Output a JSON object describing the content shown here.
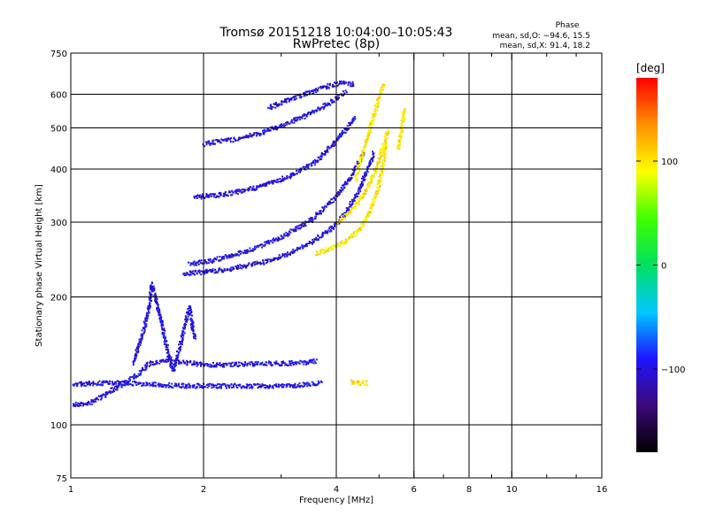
{
  "chart_data": {
    "type": "scatter",
    "title": "Tromsø 20151218 10:04:00–10:05:43",
    "subtitle": "RwPretec (8p)",
    "xlabel": "Frequency [MHz]",
    "ylabel": "Stationary phase Virtual Height [km]",
    "x_scale": "log",
    "y_scale": "log",
    "xlim": [
      1,
      16
    ],
    "ylim": [
      75,
      750
    ],
    "x_ticks": [
      "1",
      "2",
      "4",
      "6",
      "8",
      "10",
      "16"
    ],
    "x_tick_values": [
      1,
      2,
      4,
      6,
      8,
      10,
      16
    ],
    "x_minor_ticks": [
      3,
      5,
      7,
      9,
      12,
      14
    ],
    "y_ticks": [
      "75",
      "100",
      "200",
      "300",
      "400",
      "500",
      "600",
      "750"
    ],
    "y_tick_values": [
      75,
      100,
      200,
      300,
      400,
      500,
      600,
      750
    ],
    "grid": true,
    "grid_x": [
      2,
      4,
      6,
      8,
      10
    ],
    "grid_y": [
      100,
      200,
      300,
      400,
      500,
      600
    ],
    "stats": {
      "heading": "Phase",
      "line_o": "mean, sd,O: −94.6, 15.5",
      "line_x": "mean, sd,X:  91.4, 18.2"
    },
    "colorbar": {
      "label": "[deg]",
      "range": [
        -180,
        180
      ],
      "ticks": [
        "100",
        "0",
        "−100"
      ],
      "tick_values": [
        100,
        0,
        -100
      ],
      "colors": [
        "#000000",
        "#3c0a78",
        "#1e14ff",
        "#00c8ff",
        "#00e060",
        "#40ff00",
        "#ffff00",
        "#ff9000",
        "#ff0000"
      ]
    },
    "traces": [
      {
        "name": "",
        "phase": -100,
        "x": [
          1.0,
          1.1,
          1.2,
          1.3,
          1.42,
          1.5,
          1.62,
          1.75,
          1.9,
          2.0,
          2.3,
          2.7,
          3.0,
          3.4,
          3.6
        ],
        "y": [
          112,
          113,
          119,
          125,
          132,
          140,
          142,
          141,
          140,
          139,
          139,
          140,
          140,
          141,
          142
        ]
      },
      {
        "name": "",
        "phase": -100,
        "x": [
          1.0,
          1.15,
          1.35,
          1.55,
          1.8,
          2.0,
          2.5,
          3.0,
          3.4,
          3.7
        ],
        "y": [
          125,
          126,
          126,
          125,
          124,
          124,
          124,
          124,
          125,
          126
        ]
      },
      {
        "name": "",
        "phase": -100,
        "x": [
          1.38,
          1.45,
          1.5,
          1.52,
          1.55,
          1.6,
          1.65,
          1.7
        ],
        "y": [
          140,
          165,
          190,
          215,
          200,
          175,
          150,
          135
        ]
      },
      {
        "name": "",
        "phase": -100,
        "x": [
          1.7,
          1.75,
          1.8,
          1.85,
          1.9
        ],
        "y": [
          135,
          150,
          170,
          190,
          160
        ]
      },
      {
        "name": "",
        "phase": -100,
        "x": [
          1.8,
          2.0,
          2.3,
          2.7,
          3.1,
          3.5,
          3.9,
          4.2,
          4.45,
          4.65,
          4.85
        ],
        "y": [
          228,
          230,
          234,
          242,
          254,
          270,
          292,
          318,
          352,
          392,
          440
        ]
      },
      {
        "name": "",
        "phase": -100,
        "x": [
          1.85,
          2.1,
          2.5,
          3.0,
          3.5,
          3.9,
          4.3,
          4.6
        ],
        "y": [
          240,
          245,
          258,
          278,
          305,
          338,
          385,
          440
        ]
      },
      {
        "name": "",
        "phase": -100,
        "x": [
          1.9,
          2.2,
          2.6,
          3.1,
          3.6,
          4.0,
          4.4
        ],
        "y": [
          345,
          350,
          362,
          385,
          420,
          470,
          530
        ]
      },
      {
        "name": "",
        "phase": -100,
        "x": [
          2.0,
          2.1,
          2.3,
          2.7,
          3.1,
          3.5,
          3.9,
          4.2
        ],
        "y": [
          460,
          465,
          470,
          490,
          515,
          545,
          580,
          615
        ]
      },
      {
        "name": "",
        "phase": -100,
        "x": [
          2.8,
          3.1,
          3.5,
          3.8,
          4.1,
          4.4
        ],
        "y": [
          560,
          585,
          610,
          630,
          640,
          635
        ]
      },
      {
        "name": "",
        "phase": 100,
        "x": [
          3.6,
          3.9,
          4.2,
          4.5,
          4.75,
          4.95,
          5.1,
          5.2
        ],
        "y": [
          255,
          262,
          272,
          290,
          320,
          360,
          420,
          500
        ]
      },
      {
        "name": "",
        "phase": 100,
        "x": [
          4.0,
          4.3,
          4.6,
          4.9,
          5.1
        ],
        "y": [
          300,
          320,
          350,
          400,
          460
        ]
      },
      {
        "name": "",
        "phase": 100,
        "x": [
          4.4,
          4.55,
          4.7,
          4.85,
          5.0,
          5.1
        ],
        "y": [
          380,
          430,
          480,
          540,
          600,
          640
        ]
      },
      {
        "name": "",
        "phase": 100,
        "x": [
          4.3,
          4.5,
          4.7
        ],
        "y": [
          127,
          126,
          126
        ]
      },
      {
        "name": "",
        "phase": 100,
        "x": [
          5.5,
          5.6,
          5.7
        ],
        "y": [
          450,
          500,
          560
        ]
      }
    ]
  }
}
